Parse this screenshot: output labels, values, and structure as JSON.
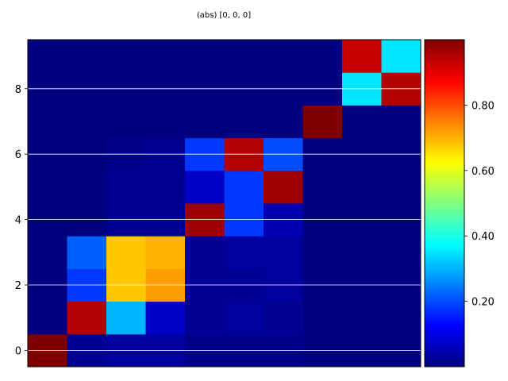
{
  "chart_data": {
    "type": "heatmap",
    "title": "(abs) [0, 0, 0]",
    "xlabel": "",
    "ylabel": "",
    "x_range": [
      -0.5,
      9.5
    ],
    "ylim": [
      -0.5,
      9.5
    ],
    "yticks": [
      0,
      2,
      4,
      6,
      8
    ],
    "ytick_labels": [
      "0",
      "2",
      "4",
      "6",
      "8"
    ],
    "show_xticks": false,
    "horizontal_grid": true,
    "colormap": "jet",
    "color_range": [
      0,
      1
    ],
    "colorbar_ticks": [
      0.2,
      0.4,
      0.6,
      0.8
    ],
    "colorbar_tick_labels": [
      "0.20",
      "0.40",
      "0.60",
      "0.80"
    ],
    "colorbar_position": "right",
    "rows_bottom_to_top": [
      [
        1.0,
        0.02,
        0.03,
        0.03,
        0.01,
        0.01,
        0.01,
        0.0,
        0.0,
        0.0
      ],
      [
        0.0,
        0.95,
        0.3,
        0.07,
        0.02,
        0.03,
        0.02,
        0.0,
        0.0,
        0.0
      ],
      [
        0.0,
        0.18,
        0.68,
        0.72,
        0.02,
        0.02,
        0.03,
        0.0,
        0.0,
        0.0
      ],
      [
        0.0,
        0.22,
        0.68,
        0.7,
        0.02,
        0.03,
        0.03,
        0.0,
        0.0,
        0.0
      ],
      [
        0.0,
        0.0,
        0.02,
        0.02,
        0.97,
        0.18,
        0.05,
        0.0,
        0.0,
        0.0
      ],
      [
        0.0,
        0.0,
        0.02,
        0.02,
        0.07,
        0.18,
        0.97,
        0.0,
        0.0,
        0.0
      ],
      [
        0.0,
        0.0,
        0.01,
        0.02,
        0.18,
        0.95,
        0.2,
        0.0,
        0.0,
        0.0
      ],
      [
        0.0,
        0.0,
        0.0,
        0.0,
        0.0,
        0.0,
        0.0,
        1.0,
        0.0,
        0.0
      ],
      [
        0.0,
        0.0,
        0.0,
        0.0,
        0.0,
        0.0,
        0.0,
        0.0,
        0.35,
        0.95
      ],
      [
        0.0,
        0.0,
        0.0,
        0.0,
        0.0,
        0.0,
        0.0,
        0.0,
        0.93,
        0.35
      ]
    ]
  }
}
